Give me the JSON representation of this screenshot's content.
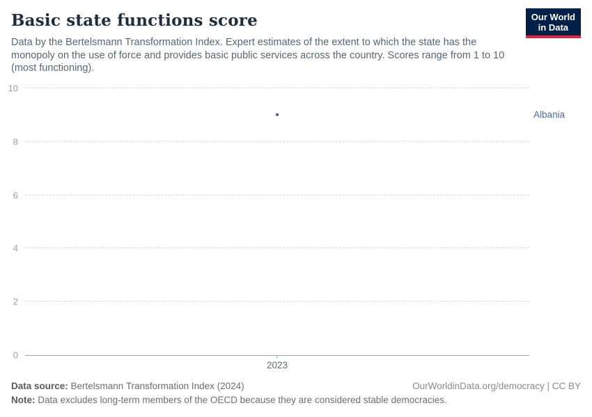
{
  "header": {
    "title": "Basic state functions score",
    "subtitle": "Data by the Bertelsmann Transformation Index. Expert estimates of the extent to which the state has the monopoly on the use of force and provides basic public services across the country. Scores range from 1 to 10 (most functioning).",
    "logo": {
      "line1": "Our World",
      "line2": "in Data",
      "bg_color": "#002147",
      "accent_color": "#e02540"
    }
  },
  "chart_data": {
    "type": "scatter",
    "title": "Basic state functions score",
    "xlabel": "",
    "ylabel": "",
    "ylim": [
      0,
      10
    ],
    "yticks": [
      0,
      2,
      4,
      6,
      8,
      10
    ],
    "xticks": [
      "2023"
    ],
    "grid": "horizontal-dashed",
    "legend": "entity-label-right",
    "series": [
      {
        "name": "Albania",
        "x": [
          "2023"
        ],
        "values": [
          9.0
        ],
        "color": "#4c6a9c",
        "point_color": "#3d5a8f"
      }
    ]
  },
  "footer": {
    "source_label": "Data source:",
    "source_text": " Bertelsmann Transformation Index (2024)",
    "rights_text": "OurWorldinData.org/democracy | CC BY",
    "note_label": "Note:",
    "note_text": " Data excludes long-term members of the OECD because they are considered stable democracies."
  }
}
